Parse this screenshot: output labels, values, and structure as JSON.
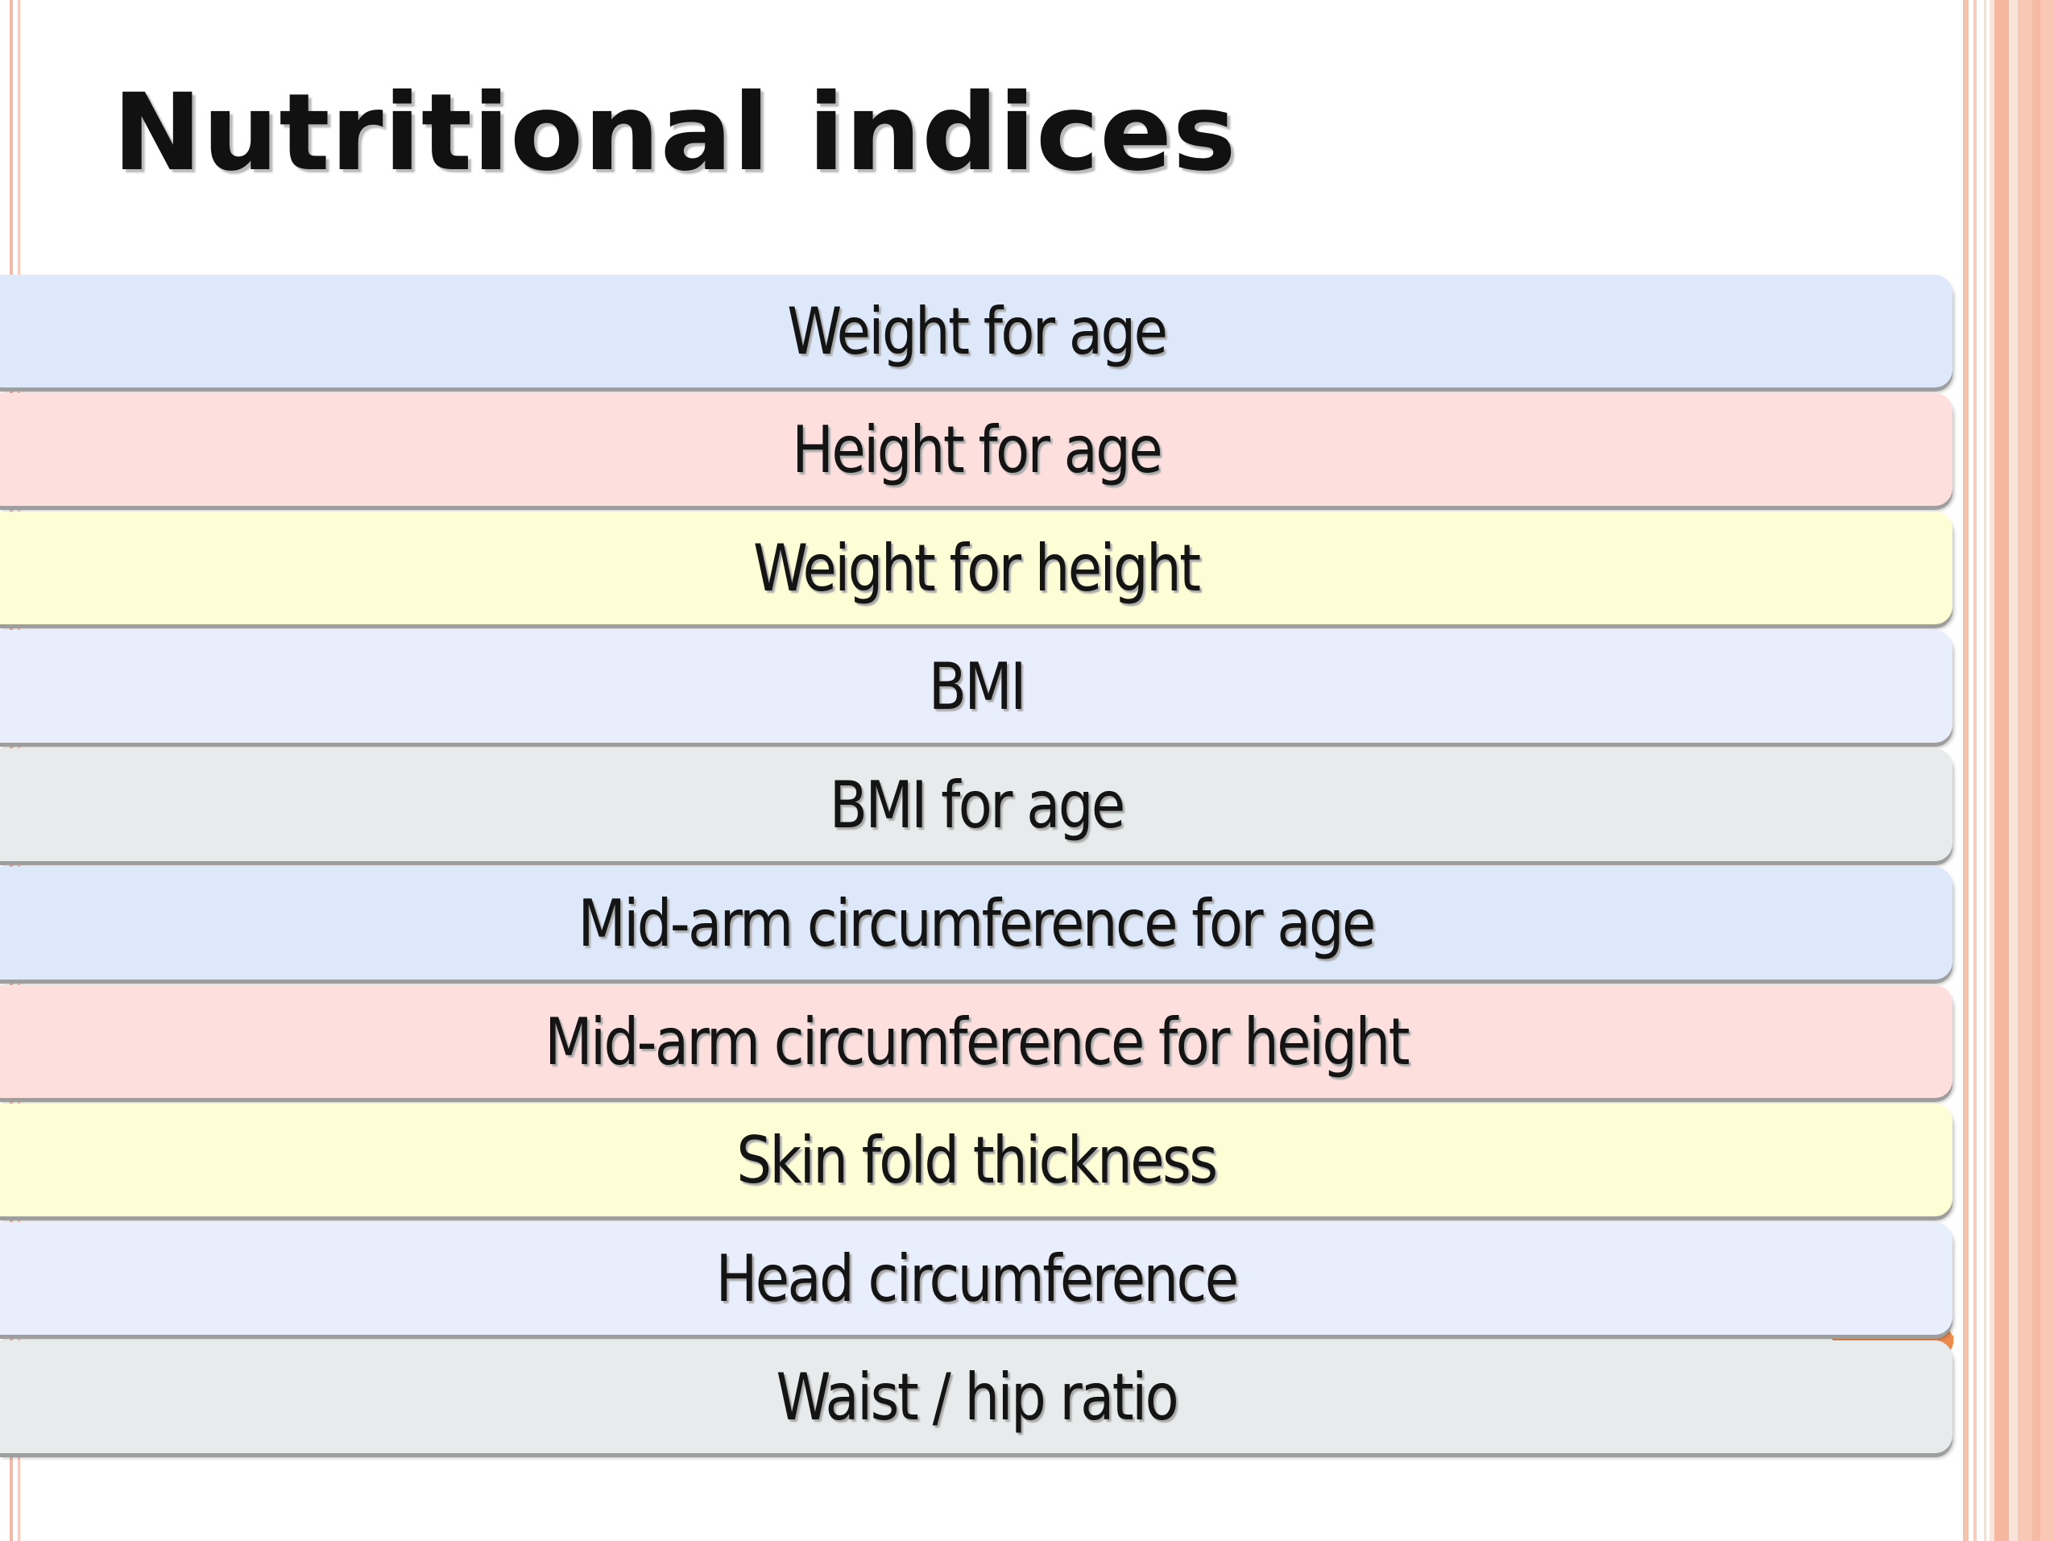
{
  "slide": {
    "title": "Nutritional indices",
    "items": [
      {
        "label": "Weight for age",
        "color": "#dde9fb"
      },
      {
        "label": "Height for age",
        "color": "#fde0de"
      },
      {
        "label": "Weight for height",
        "color": "#fefed6"
      },
      {
        "label": "BMI",
        "color": "#e9eefc"
      },
      {
        "label": "BMI for age",
        "color": "#e8ebec"
      },
      {
        "label": "Mid-arm circumference for age",
        "color": "#dde9fb"
      },
      {
        "label": "Mid-arm circumference for height",
        "color": "#fde0de"
      },
      {
        "label": "Skin fold thickness",
        "color": "#fefed6"
      },
      {
        "label": "Head circumference",
        "color": "#e9eefc"
      },
      {
        "label": "Waist / hip ratio",
        "color": "#e8ebec"
      }
    ]
  },
  "theme": {
    "accent_orange": "#ee8a4c",
    "border_peach": "#f6c2ae"
  }
}
